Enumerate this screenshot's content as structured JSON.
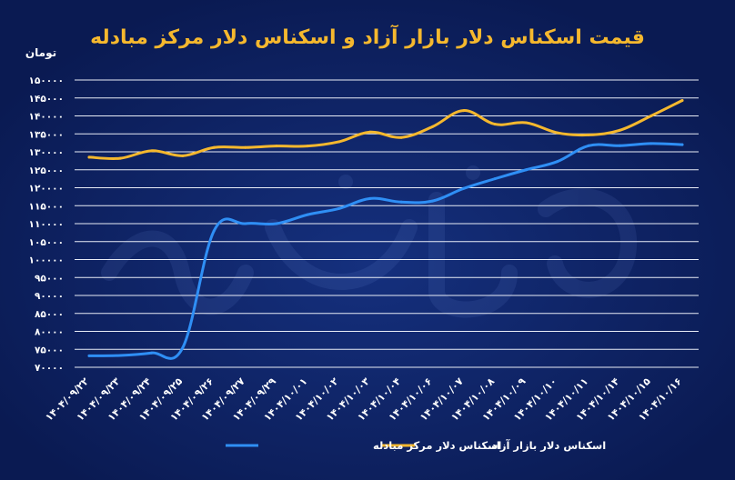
{
  "chart_data": {
    "type": "line",
    "title": "قیمت اسکناس دلار بازار آزاد و اسکناس دلار مرکز مبادله",
    "ylabel": "تومان",
    "ylim": [
      70000,
      150000
    ],
    "yticks": [
      {
        "value": 70000,
        "label": "۷۰۰۰۰"
      },
      {
        "value": 75000,
        "label": "۷۵۰۰۰"
      },
      {
        "value": 80000,
        "label": "۸۰۰۰۰"
      },
      {
        "value": 85000,
        "label": "۸۵۰۰۰"
      },
      {
        "value": 90000,
        "label": "۹۰۰۰۰"
      },
      {
        "value": 95000,
        "label": "۹۵۰۰۰"
      },
      {
        "value": 100000,
        "label": "۱۰۰۰۰۰"
      },
      {
        "value": 105000,
        "label": "۱۰۵۰۰۰"
      },
      {
        "value": 110000,
        "label": "۱۱۰۰۰۰"
      },
      {
        "value": 115000,
        "label": "۱۱۵۰۰۰"
      },
      {
        "value": 120000,
        "label": "۱۲۰۰۰۰"
      },
      {
        "value": 125000,
        "label": "۱۲۵۰۰۰"
      },
      {
        "value": 130000,
        "label": "۱۳۰۰۰۰"
      },
      {
        "value": 135000,
        "label": "۱۳۵۰۰۰"
      },
      {
        "value": 140000,
        "label": "۱۴۰۰۰۰"
      },
      {
        "value": 145000,
        "label": "۱۴۵۰۰۰"
      },
      {
        "value": 150000,
        "label": "۱۵۰۰۰۰"
      }
    ],
    "categories": [
      "۱۴۰۴/۰۹/۲۲",
      "۱۴۰۴/۰۹/۲۳",
      "۱۴۰۴/۰۹/۲۴",
      "۱۴۰۴/۰۹/۲۵",
      "۱۴۰۴/۰۹/۲۶",
      "۱۴۰۴/۰۹/۲۷",
      "۱۴۰۴/۰۹/۲۹",
      "۱۴۰۴/۱۰/۰۱",
      "۱۴۰۴/۱۰/۰۲",
      "۱۴۰۴/۱۰/۰۳",
      "۱۴۰۴/۱۰/۰۴",
      "۱۴۰۴/۱۰/۰۶",
      "۱۴۰۴/۱۰/۰۷",
      "۱۴۰۴/۱۰/۰۸",
      "۱۴۰۴/۱۰/۰۹",
      "۱۴۰۴/۱۰/۱۰",
      "۱۴۰۴/۱۰/۱۱",
      "۱۴۰۴/۱۰/۱۴",
      "۱۴۰۴/۱۰/۱۵",
      "۱۴۰۴/۱۰/۱۶"
    ],
    "series": [
      {
        "name": "اسکناس دلار بازار آزاد",
        "color": "#f5b82e",
        "values": [
          128500,
          128200,
          130300,
          128900,
          131200,
          131200,
          131600,
          131600,
          132800,
          135500,
          134000,
          137000,
          141500,
          137700,
          138100,
          135300,
          134700,
          136000,
          140000,
          144300
        ]
      },
      {
        "name": "اسکناس دلار مرکز مبادله",
        "color": "#2f8ff5",
        "values": [
          73200,
          73300,
          74000,
          75500,
          108000,
          110000,
          110000,
          112500,
          114200,
          117000,
          116000,
          116300,
          119800,
          122500,
          125000,
          127300,
          131700,
          131700,
          132300,
          132000
        ]
      }
    ],
    "legend_position": "bottom",
    "grid": true
  }
}
